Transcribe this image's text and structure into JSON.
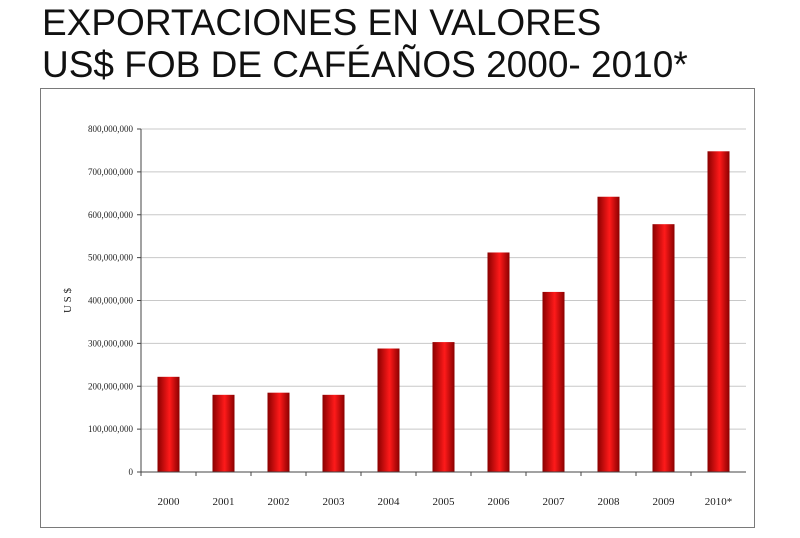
{
  "title": {
    "line1": "EXPORTACIONES EN VALORES",
    "line2": "US$ FOB DE CAFÉAÑOS 2000- 2010*"
  },
  "chart_data": {
    "type": "bar",
    "categories": [
      "2000",
      "2001",
      "2002",
      "2003",
      "2004",
      "2005",
      "2006",
      "2007",
      "2008",
      "2009",
      "2010*"
    ],
    "values": [
      222000000,
      180000000,
      185000000,
      180000000,
      288000000,
      303000000,
      512000000,
      420000000,
      642000000,
      578000000,
      748000000
    ],
    "ylabel": "U S $",
    "ylim": [
      0,
      800000000
    ],
    "yticks": [
      0,
      100000000,
      200000000,
      300000000,
      400000000,
      500000000,
      600000000,
      700000000,
      800000000
    ],
    "ytick_labels": [
      "0",
      "100,000,000",
      "200,000,000",
      "300,000,000",
      "400,000,000",
      "500,000,000",
      "600,000,000",
      "700,000,000",
      "800,000,000"
    ],
    "grid": true,
    "legend": "none",
    "colors": {
      "bar_light": "#ff1a1a",
      "bar_dark": "#8a0000",
      "grid": "#c8c8c8",
      "axis": "#444444"
    }
  }
}
